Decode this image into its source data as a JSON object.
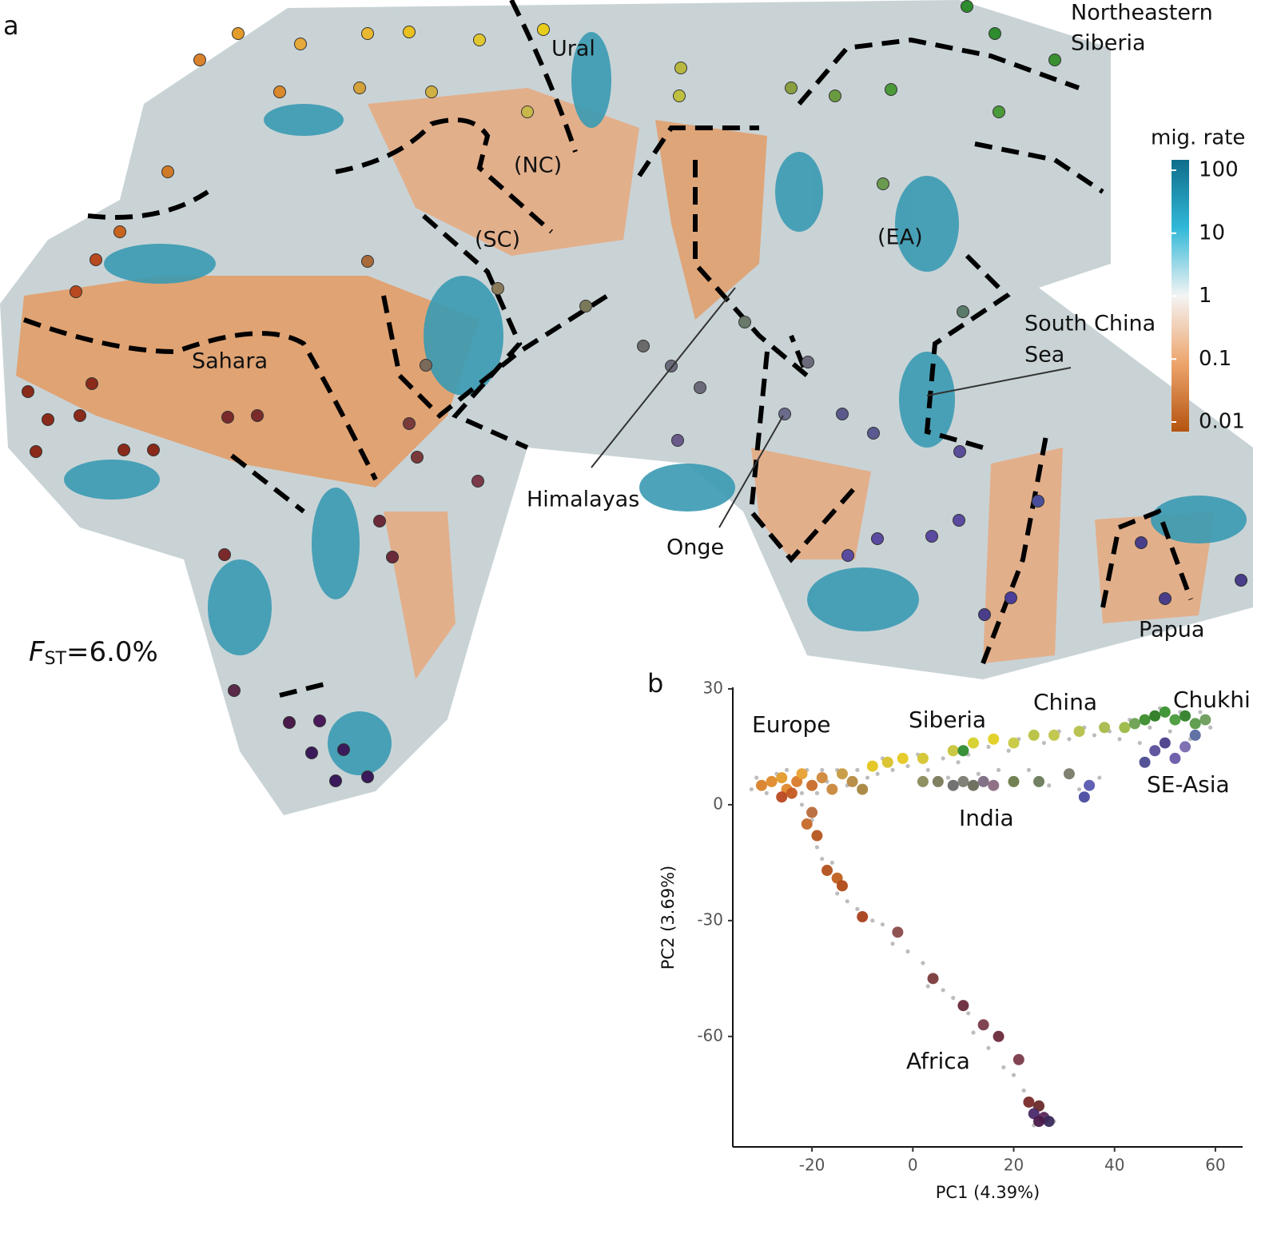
{
  "panel_a": {
    "panel_label": "a",
    "labels": [
      "Ural",
      "(NC)",
      "(SC)",
      "(EA)",
      "Sahara",
      "Himalayas",
      "Onge",
      "South China",
      "Sea",
      "Northeastern",
      "Siberia",
      "Papua"
    ],
    "fst": {
      "symbol": "F",
      "subscript": "ST",
      "text": "=6.0%"
    },
    "colorbar": {
      "title": "mig. rate",
      "log_scale": true,
      "clim": [
        0.01,
        100
      ],
      "ticks": [
        100,
        10,
        1,
        0.1,
        0.01
      ]
    }
  },
  "chart_data": {
    "type": "scatter",
    "panel_label": "b",
    "x_label": "PC1 (4.39%)",
    "y_label": "PC2 (3.69%)",
    "xlim": [
      -35.7,
      65.4
    ],
    "ylim": [
      -88.6,
      30.4
    ],
    "xticks": [
      -20,
      0,
      20,
      40,
      60
    ],
    "yticks": [
      30,
      0,
      -30,
      -60
    ],
    "annotations": [
      "Europe",
      "Siberia",
      "China",
      "Chukhi",
      "SE-Asia",
      "India",
      "Africa"
    ],
    "series": [
      {
        "color": "#bdbdbd",
        "x": [
          -32,
          -31,
          -29,
          -27,
          -25,
          -24,
          -22,
          -21,
          -19,
          -18,
          -17,
          -15,
          -13,
          -11,
          -9,
          -7,
          -6,
          -4,
          -1,
          1,
          3,
          6,
          7,
          9,
          11,
          13,
          15,
          17,
          19,
          21,
          23,
          26,
          27,
          29,
          31,
          33,
          34,
          36,
          37,
          39,
          41,
          43,
          45,
          47,
          49,
          51,
          53,
          55,
          57,
          59,
          -22,
          -20,
          -19,
          -18,
          -16,
          -15,
          -13,
          -11,
          -8,
          -6,
          -4,
          -1,
          2,
          3,
          6,
          8,
          11,
          12,
          15,
          18,
          20,
          22,
          24,
          26,
          28,
          24
        ],
        "y": [
          4,
          7,
          3,
          8,
          9,
          2,
          3,
          9,
          3,
          9,
          6,
          9,
          5,
          9,
          7,
          8,
          12,
          9,
          10,
          13,
          9,
          12,
          7,
          11,
          13,
          8,
          15,
          9,
          14,
          17,
          9,
          16,
          5,
          19,
          17,
          4,
          20,
          18,
          7,
          19,
          17,
          22,
          16,
          20,
          25,
          19,
          24,
          17,
          24,
          20,
          0,
          -4,
          -11,
          -14,
          -15,
          -23,
          -25,
          -27,
          -30,
          -31,
          -36,
          -38,
          -41,
          -47,
          -48,
          -50,
          -54,
          -59,
          -63,
          -68,
          -70,
          -74,
          -78,
          -80,
          -82,
          -83
        ]
      },
      {
        "colors": [
          "#d9822b",
          "#e08a2a",
          "#e39b2a",
          "#e0892d",
          "#d97a2a",
          "#e8a030",
          "#c96a28",
          "#d08838",
          "#c9883c",
          "#c79a40",
          "#b58a3f",
          "#a8853f",
          "#b8481f",
          "#c45a22",
          "#e3c41c",
          "#d9c12a",
          "#e5c81f",
          "#d4c530",
          "#c9c43a",
          "#d6d02a",
          "#e0d020",
          "#c8c840",
          "#b8c240",
          "#c0c54a",
          "#b5c04a",
          "#a8b94a",
          "#9bb845",
          "#2e8b2e",
          "#3c8c2c",
          "#2a7a22",
          "#3a9030",
          "#4a9a3a",
          "#2f7f2a",
          "#5a9a48",
          "#6a9c58",
          "#6aa050",
          "#5a4e9a",
          "#4a3e8a",
          "#6a5aa8",
          "#7a6ab0",
          "#5a6aa0",
          "#4a4a90",
          "#5a5ab0",
          "#4a4aa0",
          "#8a8a5a",
          "#7a7a5a",
          "#6a6a6a",
          "#7a7a70",
          "#6a6a5a",
          "#7a6a80",
          "#8a6a80",
          "#6a7a4a",
          "#6a7a5a",
          "#7a7a6a",
          "#b86a3a",
          "#c5692a",
          "#b5551e",
          "#b2501c",
          "#c0601e",
          "#b04a18",
          "#a8401c",
          "#8a4a4a",
          "#7a3a3a",
          "#6a2a3a",
          "#7a3a4a",
          "#6a2a3a",
          "#7a3a4a",
          "#7a2a2a",
          "#6a2a2a",
          "#4a2a6a",
          "#5a2a5a",
          "#3a2a5a",
          "#4a1a4a"
        ],
        "x": [
          -30,
          -28,
          -26,
          -25,
          -23,
          -22,
          -20,
          -18,
          -16,
          -14,
          -12,
          -10,
          -26,
          -24,
          -8,
          -5,
          -2,
          2,
          8,
          12,
          16,
          20,
          24,
          28,
          33,
          38,
          42,
          10,
          46,
          48,
          50,
          52,
          54,
          56,
          58,
          44,
          48,
          50,
          52,
          54,
          56,
          46,
          35,
          34,
          2,
          5,
          8,
          10,
          12,
          14,
          16,
          20,
          25,
          31,
          -20,
          -21,
          -19,
          -17,
          -15,
          -14,
          -10,
          -3,
          4,
          10,
          14,
          17,
          21,
          23,
          25,
          24,
          26,
          27,
          25
        ],
        "y": [
          5,
          6,
          7,
          4,
          6,
          8,
          5,
          7,
          4,
          8,
          6,
          4,
          2,
          3,
          10,
          11,
          12,
          12,
          14,
          16,
          17,
          16,
          18,
          18,
          19,
          20,
          20,
          14,
          22,
          23,
          24,
          22,
          23,
          21,
          22,
          21,
          14,
          16,
          12,
          15,
          18,
          11,
          5,
          2,
          6,
          6,
          5,
          6,
          5,
          6,
          5,
          6,
          6,
          8,
          -2,
          -5,
          -8,
          -17,
          -19,
          -21,
          -29,
          -33,
          -45,
          -52,
          -57,
          -60,
          -66,
          -77,
          -78,
          -80,
          -81,
          -82,
          -82
        ]
      }
    ]
  }
}
